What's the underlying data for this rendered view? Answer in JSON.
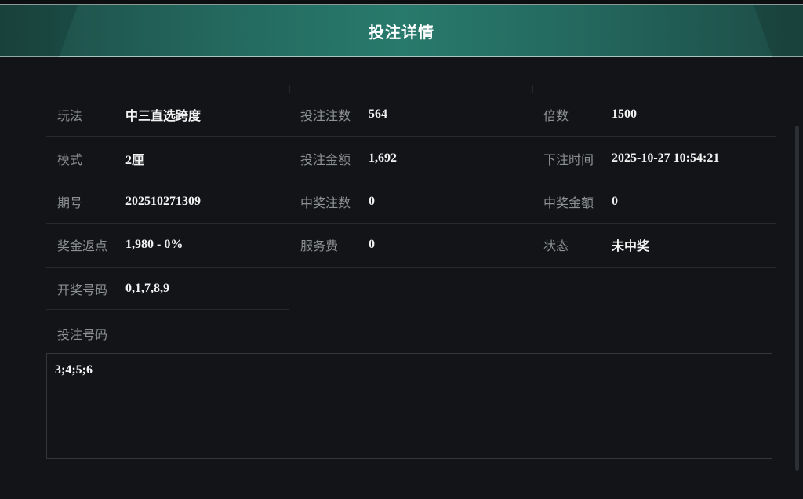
{
  "title": "投注详情",
  "rows": [
    [
      {
        "label": "玩法",
        "value": "中三直选跨度"
      },
      {
        "label": "投注注数",
        "value": "564"
      },
      {
        "label": "倍数",
        "value": "1500"
      }
    ],
    [
      {
        "label": "模式",
        "value": "2厘"
      },
      {
        "label": "投注金额",
        "value": "1,692"
      },
      {
        "label": "下注时间",
        "value": "2025-10-27 10:54:21"
      }
    ],
    [
      {
        "label": "期号",
        "value": "202510271309"
      },
      {
        "label": "中奖注数",
        "value": "0"
      },
      {
        "label": "中奖金额",
        "value": "0"
      }
    ],
    [
      {
        "label": "奖金返点",
        "value": "1,980 - 0%"
      },
      {
        "label": "服务费",
        "value": "0"
      },
      {
        "label": "状态",
        "value": "未中奖"
      }
    ],
    [
      {
        "label": "开奖号码",
        "value": "0,1,7,8,9"
      }
    ]
  ],
  "bet_numbers": {
    "label": "投注号码",
    "value": "3;4;5;6"
  }
}
